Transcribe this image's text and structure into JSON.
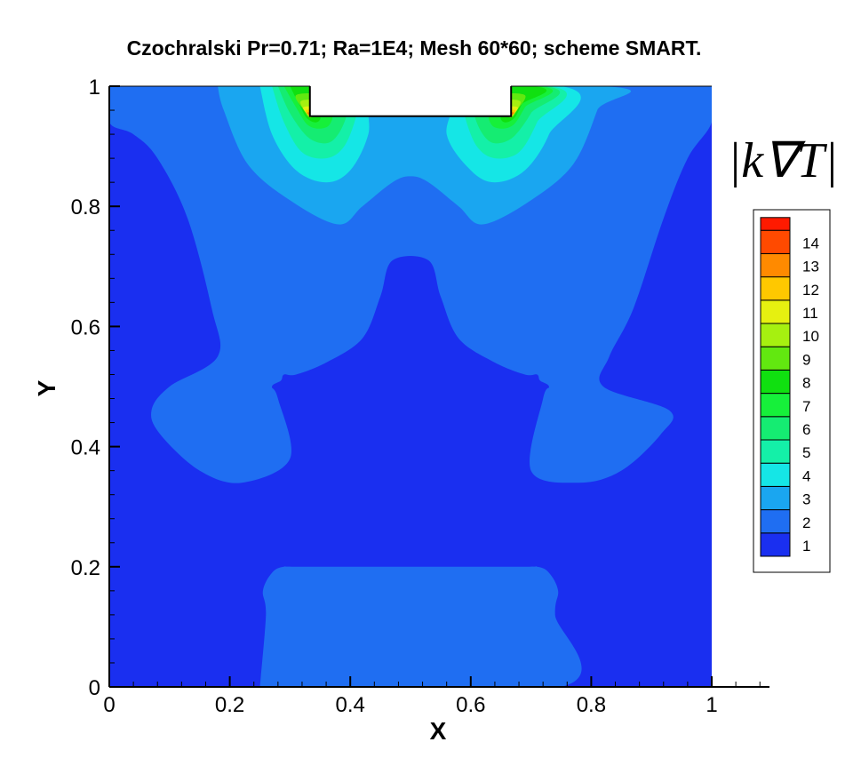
{
  "chart_data": {
    "type": "contour",
    "title": "Czochralski Pr=0.71; Ra=1E4; Mesh 60*60; scheme SMART.",
    "xlabel": "X",
    "ylabel": "Y",
    "xlim": [
      0,
      1
    ],
    "ylim": [
      0,
      1
    ],
    "x_ticks": [
      "0",
      "0.2",
      "0.4",
      "0.6",
      "0.8",
      "1"
    ],
    "y_ticks": [
      "0",
      "0.2",
      "0.4",
      "0.6",
      "0.8",
      "1"
    ],
    "x_tick_values": [
      0,
      0.2,
      0.4,
      0.6,
      0.8,
      1
    ],
    "y_tick_values": [
      0,
      0.2,
      0.4,
      0.6,
      0.8,
      1
    ],
    "colorbar_title": "|k∇T|",
    "legend_placement": "right",
    "crystal_region": {
      "x": [
        0.333,
        0.667
      ],
      "y": [
        0.95,
        1.0
      ]
    },
    "levels": [
      {
        "label": "1",
        "color": "#1a2ff0"
      },
      {
        "label": "2",
        "color": "#1f6ef2"
      },
      {
        "label": "3",
        "color": "#1aa6f0"
      },
      {
        "label": "4",
        "color": "#15e6e6"
      },
      {
        "label": "5",
        "color": "#14f0a8"
      },
      {
        "label": "6",
        "color": "#15ec72"
      },
      {
        "label": "7",
        "color": "#16f03a"
      },
      {
        "label": "8",
        "color": "#10e010"
      },
      {
        "label": "9",
        "color": "#62e810"
      },
      {
        "label": "10",
        "color": "#a6f010"
      },
      {
        "label": "11",
        "color": "#e6f010"
      },
      {
        "label": "12",
        "color": "#ffc800"
      },
      {
        "label": "13",
        "color": "#ff8a00"
      },
      {
        "label": "14",
        "color": "#ff4a00"
      },
      {
        "label": "",
        "color": "#ff1a00"
      }
    ],
    "contour_regions": [
      {
        "level": 2,
        "x": [
          0.0,
          0.04,
          0.08,
          0.13,
          0.17,
          0.18,
          0.1,
          0.07,
          0.085,
          0.15,
          0.22,
          0.3,
          0.28,
          0.27,
          0.285,
          0.29,
          0.31,
          0.36,
          0.42,
          0.45,
          0.47,
          0.53,
          0.55,
          0.58,
          0.64,
          0.69,
          0.71,
          0.715,
          0.73,
          0.72,
          0.7,
          0.78,
          0.85,
          0.915,
          0.93,
          0.82,
          0.83,
          0.87,
          0.92,
          0.96,
          1.0,
          1.0,
          0.0
        ],
        "y": [
          0.94,
          0.92,
          0.88,
          0.78,
          0.63,
          0.55,
          0.5,
          0.46,
          0.42,
          0.36,
          0.34,
          0.38,
          0.48,
          0.5,
          0.51,
          0.52,
          0.52,
          0.54,
          0.58,
          0.65,
          0.71,
          0.71,
          0.65,
          0.58,
          0.54,
          0.52,
          0.52,
          0.51,
          0.5,
          0.48,
          0.36,
          0.34,
          0.36,
          0.42,
          0.46,
          0.5,
          0.55,
          0.63,
          0.78,
          0.88,
          0.94,
          1.0,
          1.0
        ]
      },
      {
        "level": 2,
        "x": [
          0.25,
          0.26,
          0.255,
          0.27,
          0.29,
          0.33,
          0.67,
          0.71,
          0.73,
          0.745,
          0.74,
          0.75,
          0.25
        ],
        "y": [
          0.0,
          0.12,
          0.16,
          0.19,
          0.2,
          0.2,
          0.2,
          0.2,
          0.19,
          0.16,
          0.12,
          0.0,
          0.0
        ]
      },
      {
        "level": 3,
        "x": [
          0.18,
          0.19,
          0.23,
          0.3,
          0.38,
          0.42,
          0.47,
          0.5,
          0.53,
          0.58,
          0.62,
          0.7,
          0.77,
          0.81,
          0.82,
          0.18
        ],
        "y": [
          1.0,
          0.96,
          0.87,
          0.81,
          0.77,
          0.8,
          0.84,
          0.85,
          0.84,
          0.8,
          0.77,
          0.81,
          0.87,
          0.96,
          1.0,
          1.0
        ]
      },
      {
        "level": 4,
        "x": [
          0.25,
          0.27,
          0.31,
          0.36,
          0.4,
          0.43,
          0.44,
          0.57,
          0.56,
          0.6,
          0.64,
          0.69,
          0.73,
          0.75,
          0.25
        ],
        "y": [
          1.0,
          0.92,
          0.86,
          0.84,
          0.86,
          0.92,
          1.0,
          1.0,
          0.92,
          0.86,
          0.84,
          0.86,
          0.92,
          1.0,
          1.0
        ]
      },
      {
        "level": 5,
        "x": [
          0.27,
          0.29,
          0.32,
          0.36,
          0.39,
          0.41,
          0.42,
          0.58,
          0.59,
          0.61,
          0.64,
          0.68,
          0.71,
          0.73,
          0.27
        ],
        "y": [
          1.0,
          0.94,
          0.89,
          0.88,
          0.9,
          0.95,
          1.0,
          1.0,
          0.95,
          0.9,
          0.88,
          0.89,
          0.94,
          1.0,
          1.0
        ]
      },
      {
        "level": 6,
        "x": [
          0.28,
          0.3,
          0.33,
          0.36,
          0.38,
          0.395,
          0.4,
          0.6,
          0.605,
          0.62,
          0.64,
          0.67,
          0.7,
          0.72,
          0.28
        ],
        "y": [
          1.0,
          0.955,
          0.915,
          0.905,
          0.92,
          0.955,
          1.0,
          1.0,
          0.955,
          0.92,
          0.905,
          0.915,
          0.955,
          1.0,
          1.0
        ]
      },
      {
        "level": 7,
        "x": [
          0.29,
          0.31,
          0.33,
          0.355,
          0.37,
          0.38,
          0.62,
          0.63,
          0.645,
          0.67,
          0.69,
          0.71,
          0.29
        ],
        "y": [
          1.0,
          0.965,
          0.935,
          0.93,
          0.945,
          1.0,
          1.0,
          0.945,
          0.93,
          0.935,
          0.965,
          1.0,
          1.0
        ]
      },
      {
        "level": 8,
        "x": [
          0.3,
          0.315,
          0.33,
          0.35,
          0.36,
          0.64,
          0.65,
          0.67,
          0.685,
          0.7,
          0.3
        ],
        "y": [
          1.0,
          0.97,
          0.945,
          0.945,
          1.0,
          1.0,
          0.945,
          0.945,
          0.97,
          1.0,
          1.0
        ]
      },
      {
        "level": 9,
        "x": [
          0.31,
          0.323,
          0.333,
          0.343,
          0.352
        ],
        "y": [
          0.985,
          0.96,
          0.948,
          0.96,
          0.985
        ]
      },
      {
        "level": 9,
        "x": [
          0.648,
          0.657,
          0.667,
          0.677,
          0.69
        ],
        "y": [
          0.985,
          0.96,
          0.948,
          0.96,
          0.985
        ]
      },
      {
        "level": 10,
        "x": [
          0.318,
          0.327,
          0.334,
          0.342,
          0.348
        ],
        "y": [
          0.975,
          0.955,
          0.948,
          0.955,
          0.975
        ]
      },
      {
        "level": 10,
        "x": [
          0.652,
          0.658,
          0.666,
          0.673,
          0.682
        ],
        "y": [
          0.975,
          0.955,
          0.948,
          0.955,
          0.975
        ]
      },
      {
        "level": 11,
        "x": [
          0.322,
          0.33,
          0.335,
          0.34,
          0.345
        ],
        "y": [
          0.965,
          0.952,
          0.949,
          0.952,
          0.965
        ]
      },
      {
        "level": 11,
        "x": [
          0.655,
          0.66,
          0.665,
          0.67,
          0.678
        ],
        "y": [
          0.965,
          0.952,
          0.949,
          0.952,
          0.965
        ]
      },
      {
        "level": 12,
        "x": [
          0.326,
          0.331,
          0.335,
          0.339,
          0.343
        ],
        "y": [
          0.96,
          0.952,
          0.95,
          0.952,
          0.96
        ]
      },
      {
        "level": 12,
        "x": [
          0.657,
          0.661,
          0.665,
          0.669,
          0.674
        ],
        "y": [
          0.96,
          0.952,
          0.95,
          0.952,
          0.96
        ]
      },
      {
        "level": 13,
        "x": [
          0.328,
          0.333,
          0.336,
          0.34
        ],
        "y": [
          0.956,
          0.951,
          0.95,
          0.956
        ]
      },
      {
        "level": 13,
        "x": [
          0.66,
          0.664,
          0.667,
          0.672
        ],
        "y": [
          0.956,
          0.95,
          0.951,
          0.956
        ]
      }
    ]
  }
}
